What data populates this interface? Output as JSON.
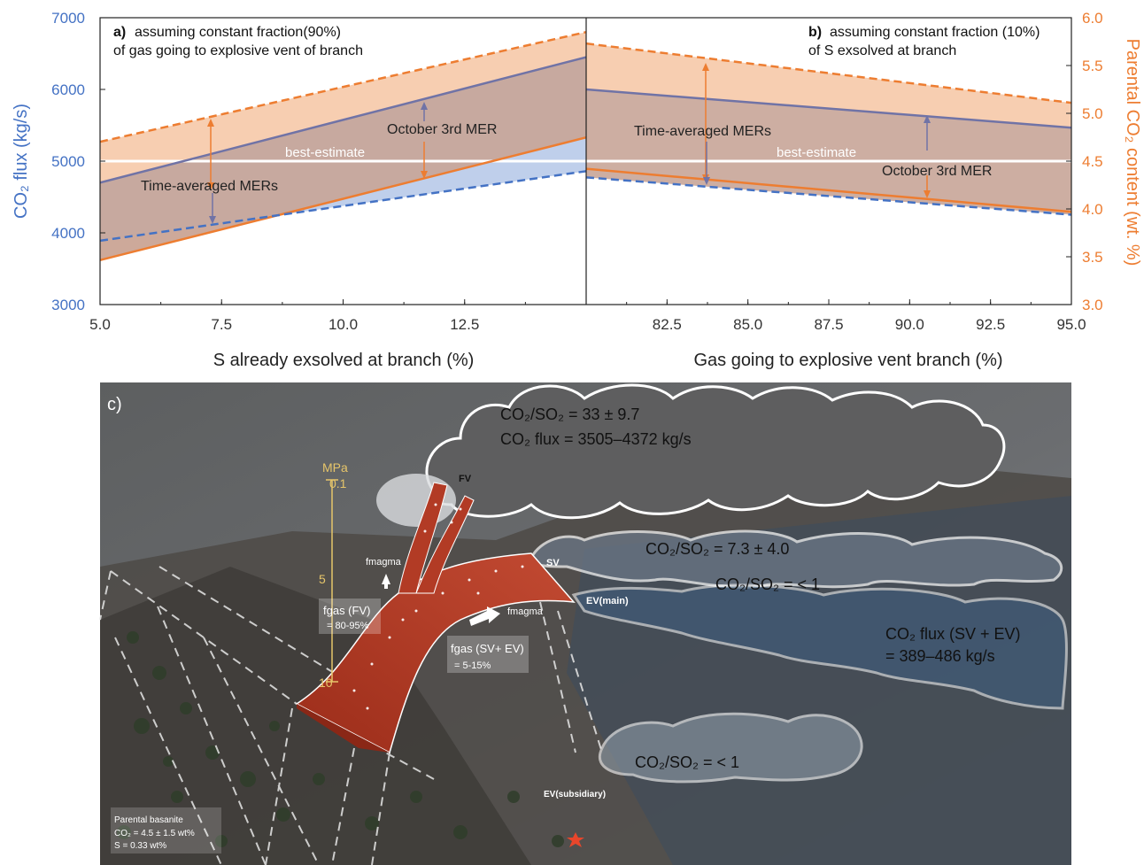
{
  "chart_data": [
    {
      "panel": "a",
      "type": "line",
      "title_bold": "a)",
      "title_line1": "assuming constant fraction(90%)",
      "title_line2": "of gas going to explosive vent of branch",
      "xlabel": "S already exsolved at branch (%)",
      "ylabel": "CO₂ flux (kg/s)",
      "xlim": [
        5.0,
        15.0
      ],
      "xticks": [
        "5.0",
        "7.5",
        "10.0",
        "12.5"
      ],
      "ylim": [
        3000,
        7000
      ],
      "yticks": [
        "3000",
        "4000",
        "5000",
        "6000",
        "7000"
      ],
      "series": [
        {
          "style": "orange-dashed",
          "x": [
            5.0,
            15.0
          ],
          "y": [
            5270,
            6800
          ]
        },
        {
          "style": "orange-solid",
          "x": [
            5.0,
            15.0
          ],
          "y": [
            3620,
            5330
          ]
        },
        {
          "style": "blue-solid",
          "x": [
            5.0,
            15.0
          ],
          "y": [
            4700,
            6450
          ]
        },
        {
          "style": "blue-dashed",
          "x": [
            5.0,
            15.0
          ],
          "y": [
            3890,
            4860
          ]
        },
        {
          "style": "white-line",
          "x": [
            5.0,
            15.0
          ],
          "y": [
            5000,
            5000
          ]
        }
      ],
      "labels": {
        "best": "best-estimate",
        "time_avg": "Time-averaged MERs",
        "oct": "October 3rd MER"
      },
      "grid": false
    },
    {
      "panel": "b",
      "type": "line",
      "title_bold": "b)",
      "title_line1": "assuming constant fraction (10%)",
      "title_line2": "of S exsolved at branch",
      "xlabel": "Gas going to explosive vent branch (%)",
      "ylabel": "Parental CO₂ content (wt. %)",
      "xlim": [
        80.0,
        95.0
      ],
      "xticks": [
        "82.5",
        "85.0",
        "87.5",
        "90.0",
        "92.5",
        "95.0"
      ],
      "ylim": [
        3.0,
        6.0
      ],
      "yticks": [
        "3.0",
        "3.5",
        "4.0",
        "4.5",
        "5.0",
        "5.5",
        "6.0"
      ],
      "series": [
        {
          "style": "orange-dashed",
          "x": [
            80.0,
            95.0
          ],
          "y": [
            5.73,
            5.11
          ]
        },
        {
          "style": "orange-solid",
          "x": [
            80.0,
            95.0
          ],
          "y": [
            4.42,
            3.97
          ]
        },
        {
          "style": "blue-solid",
          "x": [
            80.0,
            95.0
          ],
          "y": [
            5.25,
            4.85
          ]
        },
        {
          "style": "blue-dashed",
          "x": [
            80.0,
            95.0
          ],
          "y": [
            4.33,
            3.94
          ]
        },
        {
          "style": "white-line",
          "x": [
            80.0,
            95.0
          ],
          "y": [
            4.5,
            4.5
          ]
        }
      ],
      "labels": {
        "best": "best-estimate",
        "time_avg": "Time-averaged MERs",
        "oct": "October 3rd MER"
      },
      "grid": false
    }
  ],
  "photo": {
    "panel": "c)",
    "plume_ratio": "CO₂/SO₂ = 33 ± 9.7",
    "plume_flux": "CO₂ flux = 3505–4372 kg/s",
    "sv_ratio": "CO₂/SO₂ = 7.3 ± 4.0",
    "ev_ratio": "CO₂/SO₂ = < 1",
    "sv_ev_flux1": "CO₂ flux (SV + EV)",
    "sv_ev_flux2": "= 389–486 kg/s",
    "sub_ratio": "CO₂/SO₂ = < 1",
    "fv": "FV",
    "sv": "SV",
    "ev_main": "EV(main)",
    "ev_sub": "EV(subsidiary)",
    "mpa": "MPa",
    "p01": "0.1",
    "p5": "5",
    "p10": "10",
    "fmagma": "fmagma",
    "fgas_fv": "fgas (FV)",
    "fgas_fv_val": "= 80-95%",
    "fgas_svev": "fgas (SV+ EV)",
    "fgas_svev_val": "= 5-15%",
    "parental1": "Parental basanite",
    "parental2": "CO₂ = 4.5 ± 1.5 wt%",
    "parental3": "S = 0.33 wt%"
  },
  "colors": {
    "blue": "#4472c4",
    "orange": "#ed7d31",
    "fill_orange": "#f6c9a8",
    "fill_blue": "#b4c7e7",
    "overlap": "#c9a79b"
  }
}
